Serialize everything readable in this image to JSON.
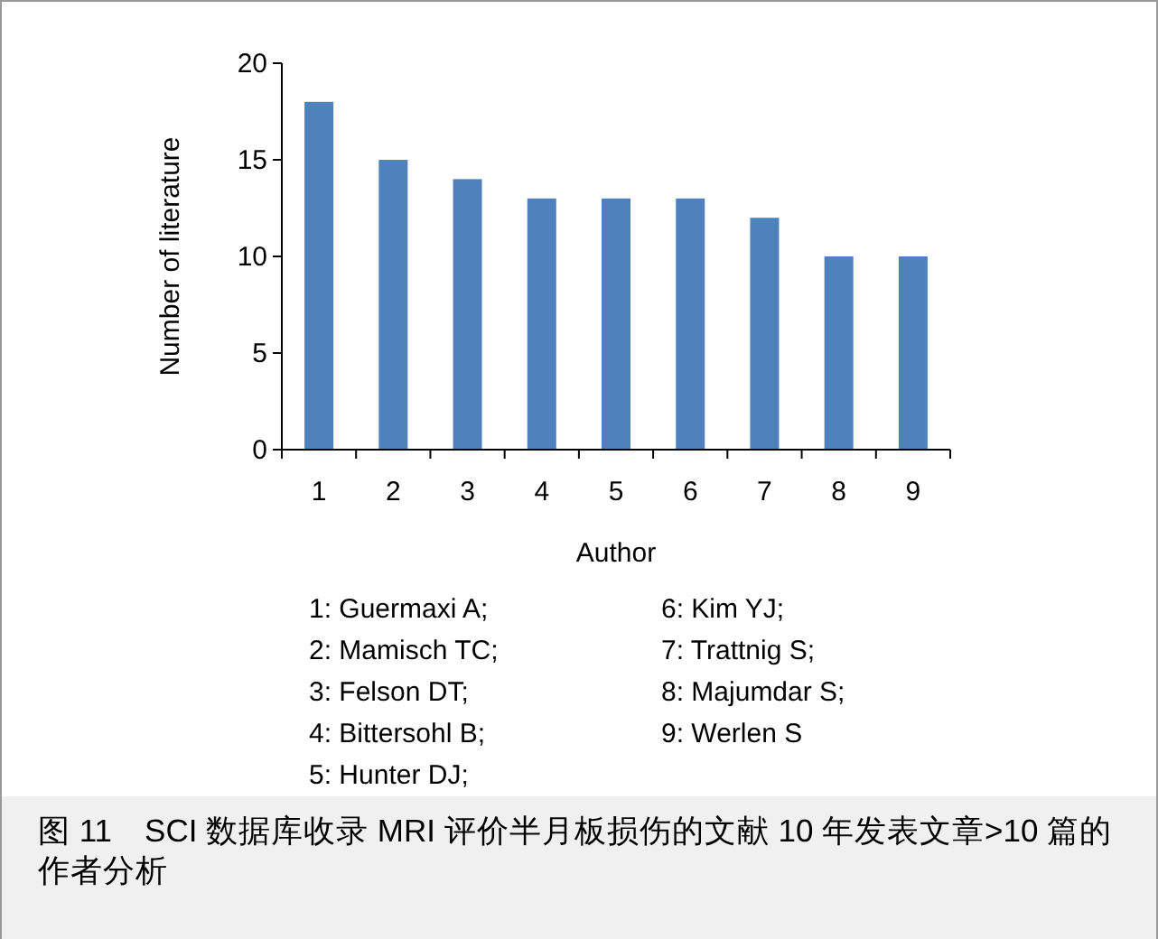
{
  "chart_data": {
    "type": "bar",
    "title": "图 11　SCI 数据库收录 MRI 评价半月板损伤的文献 10 年发表文章>10 篇的作者分析",
    "xlabel": "Author",
    "ylabel": "Number of literature",
    "categories": [
      "1",
      "2",
      "3",
      "4",
      "5",
      "6",
      "7",
      "8",
      "9"
    ],
    "values": [
      18,
      15,
      14,
      13,
      13,
      13,
      12,
      10,
      10
    ],
    "color": "#4f81bd",
    "ylim": [
      0,
      20
    ],
    "yticks": [
      0,
      5,
      10,
      15,
      20
    ],
    "grid": false,
    "annotations": [
      "1: Guermaxi A;",
      "2: Mamisch TC;",
      "3: Felson DT;",
      "4: Bittersohl B;",
      "5: Hunter DJ;",
      "6: Kim YJ;",
      "7: Trattnig S;",
      "8: Majumdar S;",
      "9: Werlen S"
    ]
  }
}
